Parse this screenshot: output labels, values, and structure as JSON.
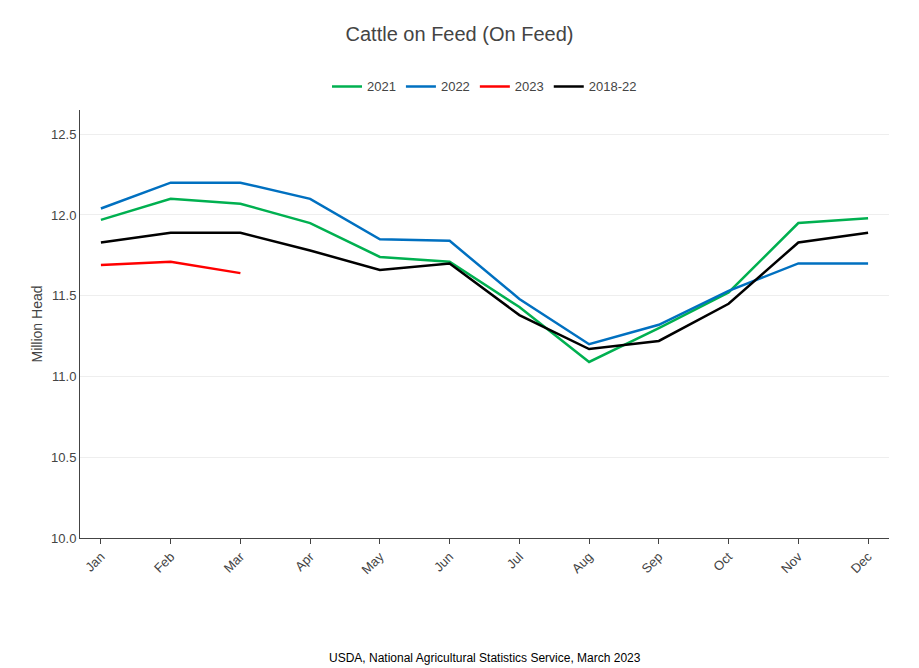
{
  "chart_data": {
    "type": "line",
    "title": "Cattle on Feed (On Feed)",
    "ylabel": "Million Head",
    "annotations": [
      "USDA, National Agricultural Statistics Service, March 2023"
    ],
    "categories": [
      "Jan",
      "Feb",
      "Mar",
      "Apr",
      "May",
      "Jun",
      "Jul",
      "Aug",
      "Sep",
      "Oct",
      "Nov",
      "Dec"
    ],
    "series": [
      {
        "name": "2021",
        "color": "#00b050",
        "values": [
          11.97,
          12.1,
          12.07,
          11.95,
          11.74,
          11.71,
          11.43,
          11.09,
          11.3,
          11.52,
          11.95,
          11.98
        ]
      },
      {
        "name": "2022",
        "color": "#0070c0",
        "values": [
          12.04,
          12.2,
          12.2,
          12.1,
          11.85,
          11.84,
          11.48,
          11.2,
          11.32,
          11.53,
          11.7,
          11.7
        ]
      },
      {
        "name": "2023",
        "color": "#ff0000",
        "values": [
          11.69,
          11.71,
          11.64,
          null,
          null,
          null,
          null,
          null,
          null,
          null,
          null,
          null
        ]
      },
      {
        "name": "2018-22",
        "color": "#000000",
        "values": [
          11.83,
          11.89,
          11.89,
          11.78,
          11.66,
          11.7,
          11.38,
          11.17,
          11.22,
          11.45,
          11.83,
          11.89
        ]
      }
    ],
    "ylim": [
      10.0,
      12.65
    ],
    "yticks": [
      {
        "value": 10.0,
        "label": "10.0"
      },
      10.5,
      {
        "value": 11.0,
        "label": "11.0"
      },
      11.5,
      {
        "value": 12.0,
        "label": "12.0"
      },
      12.5
    ],
    "grid": true,
    "legend": "top"
  }
}
